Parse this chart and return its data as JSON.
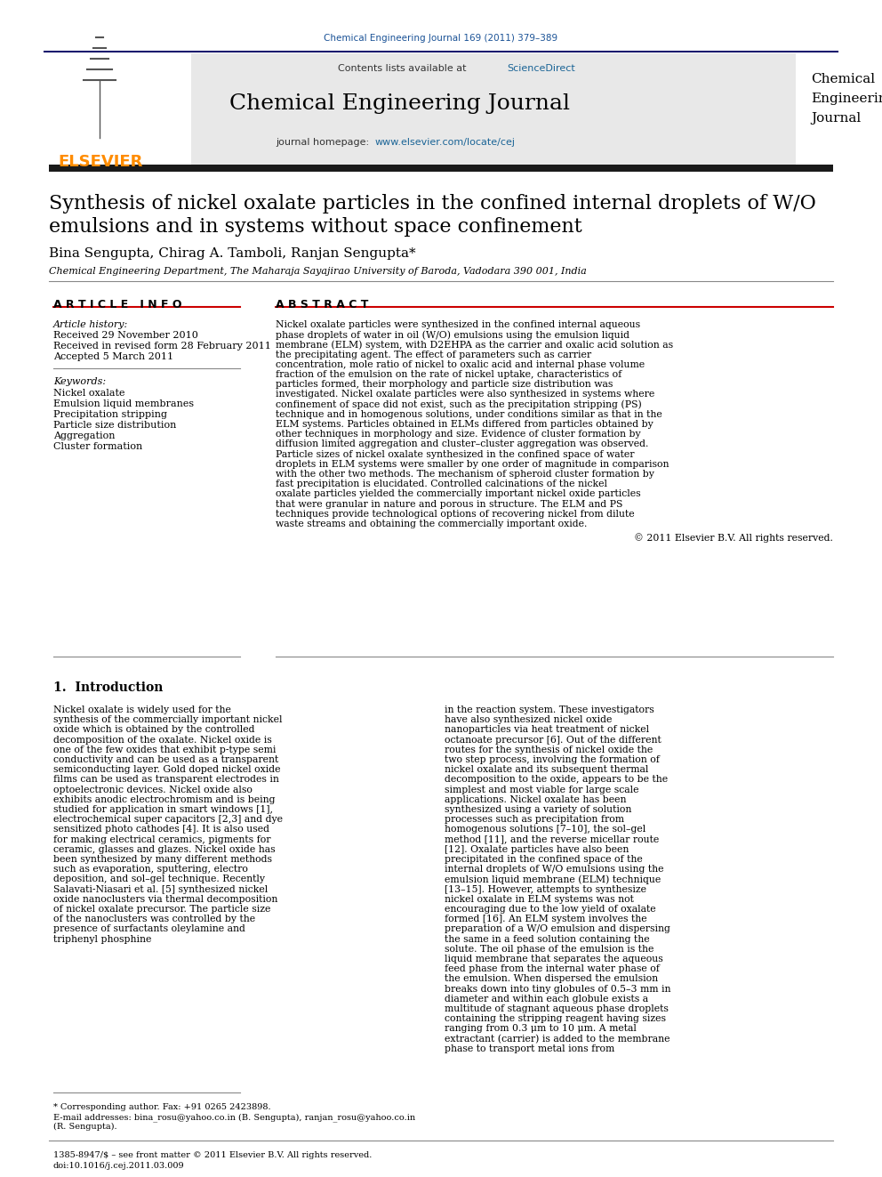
{
  "journal_ref": "Chemical Engineering Journal 169 (2011) 379–389",
  "contents_line": "Contents lists available at ScienceDirect",
  "sciencedirect_color": "#1a6496",
  "journal_name": "Chemical Engineering Journal",
  "journal_homepage": "journal homepage: www.elsevier.com/locate/cej",
  "homepage_color": "#1a6496",
  "journal_abbrev_line1": "Chemical",
  "journal_abbrev_line2": "Engineering",
  "journal_abbrev_line3": "Journal",
  "paper_title_line1": "Synthesis of nickel oxalate particles in the confined internal droplets of W/O",
  "paper_title_line2": "emulsions and in systems without space confinement",
  "authors": "Bina Sengupta, Chirag A. Tamboli, Ranjan Sengupta*",
  "affiliation": "Chemical Engineering Department, The Maharaja Sayajirao University of Baroda, Vadodara 390 001, India",
  "article_info_header": "A R T I C L E   I N F O",
  "abstract_header": "A B S T R A C T",
  "article_history_label": "Article history:",
  "received1": "Received 29 November 2010",
  "received2": "Received in revised form 28 February 2011",
  "accepted": "Accepted 5 March 2011",
  "keywords_label": "Keywords:",
  "keywords": [
    "Nickel oxalate",
    "Emulsion liquid membranes",
    "Precipitation stripping",
    "Particle size distribution",
    "Aggregation",
    "Cluster formation"
  ],
  "abstract_text": "Nickel oxalate particles were synthesized in the confined internal aqueous phase droplets of water in oil (W/O) emulsions using the emulsion liquid membrane (ELM) system, with D2EHPA as the carrier and oxalic acid solution as the precipitating agent. The effect of parameters such as carrier concentration, mole ratio of nickel to oxalic acid and internal phase volume fraction of the emulsion on the rate of nickel uptake, characteristics of particles formed, their morphology and particle size distribution was investigated. Nickel oxalate particles were also synthesized in systems where confinement of space did not exist, such as the precipitation stripping (PS) technique and in homogenous solutions, under conditions similar as that in the ELM systems. Particles obtained in ELMs differed from particles obtained by other techniques in morphology and size. Evidence of cluster formation by diffusion limited aggregation and cluster–cluster aggregation was observed. Particle sizes of nickel oxalate synthesized in the confined space of water droplets in ELM systems were smaller by one order of magnitude in comparison with the other two methods. The mechanism of spheroid cluster formation by fast precipitation is elucidated. Controlled calcinations of the nickel oxalate particles yielded the commercially important nickel oxide particles that were granular in nature and porous in structure. The ELM and PS techniques provide technological options of recovering nickel from dilute waste streams and obtaining the commercially important oxide.",
  "copyright": "© 2011 Elsevier B.V. All rights reserved.",
  "section_header": "1.  Introduction",
  "intro_col1": "Nickel oxalate is widely used for the synthesis of the commercially important nickel oxide which is obtained by the controlled decomposition of the oxalate. Nickel oxide is one of the few oxides that exhibit p-type semi conductivity and can be used as a transparent semiconducting layer. Gold doped nickel oxide films can be used as transparent electrodes in optoelectronic devices. Nickel oxide also exhibits anodic electrochromism and is being studied for application in smart windows [1], electrochemical super capacitors [2,3] and dye sensitized photo cathodes [4]. It is also used for making electrical ceramics, pigments for ceramic, glasses and glazes.\n    Nickel oxide has been synthesized by many different methods such as evaporation, sputtering, electro deposition, and sol–gel technique. Recently Salavati-Niasari et al. [5] synthesized nickel oxide nanoclusters via thermal decomposition of nickel oxalate precursor. The particle size of the nanoclusters was controlled by the presence of surfactants oleylamine and triphenyl phosphine",
  "intro_col2": "in the reaction system. These investigators have also synthesized nickel oxide nanoparticles via heat treatment of nickel octanoate precursor [6].\n    Out of the different routes for the synthesis of nickel oxide the two step process, involving the formation of nickel oxalate and its subsequent thermal decomposition to the oxide, appears to be the simplest and most viable for large scale applications. Nickel oxalate has been synthesized using a variety of solution processes such as precipitation from homogenous solutions [7–10], the sol–gel method [11], and the reverse micellar route [12]. Oxalate particles have also been precipitated in the confined space of the internal droplets of W/O emulsions using the emulsion liquid membrane (ELM) technique [13–15]. However, attempts to synthesize nickel oxalate in ELM systems was not encouraging due to the low yield of oxalate formed [16].\n    An ELM system involves the preparation of a W/O emulsion and dispersing the same in a feed solution containing the solute. The oil phase of the emulsion is the liquid membrane that separates the aqueous feed phase from the internal water phase of the emulsion. When dispersed the emulsion breaks down into tiny globules of 0.5–3 mm in diameter and within each globule exists a multitude of stagnant aqueous phase droplets containing the stripping reagent having sizes ranging from 0.3 μm to 10 μm. A metal extractant (carrier) is added to the membrane phase to transport metal ions from",
  "footnote1": "* Corresponding author. Fax: +91 0265 2423898.",
  "footnote2": "E-mail addresses: bina_rosu@yahoo.co.in (B. Sengupta), ranjan_rosu@yahoo.co.in",
  "footnote3": "(R. Sengupta).",
  "footer_left": "1385-8947/$ – see front matter © 2011 Elsevier B.V. All rights reserved.",
  "footer_right": "doi:10.1016/j.cej.2011.03.009",
  "bg_color": "#ffffff",
  "text_color": "#000000",
  "header_bar_color": "#1a1a6e",
  "dark_bar_color": "#1a1a1a",
  "elsevier_color": "#ff8c00",
  "journal_ref_color": "#1a5296",
  "title_section_bg": "#e8e8e8",
  "line_color": "#555555"
}
